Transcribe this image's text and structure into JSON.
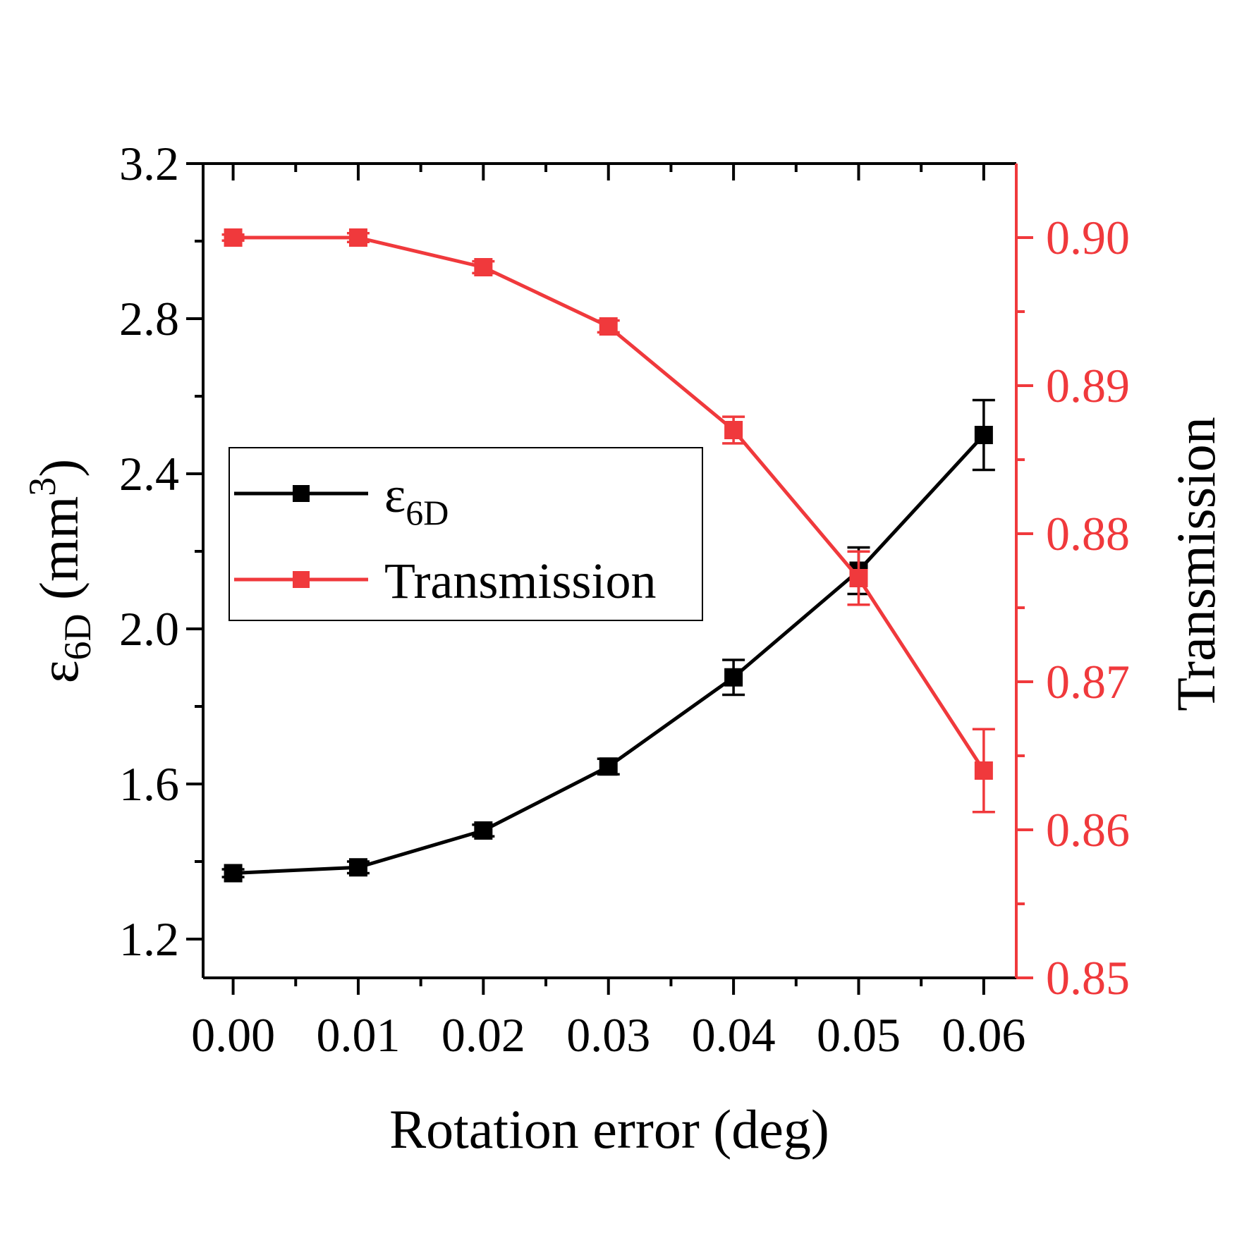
{
  "chart_data": {
    "type": "line",
    "xlabel": "Rotation error (deg)",
    "ylabel_left": {
      "symbol": "ε",
      "sub": "6D",
      "unit_pre": " (mm",
      "unit_sup": "3",
      "unit_post": ")"
    },
    "ylabel_right": "Transmission",
    "x_ticks": [
      "0.00",
      "0.01",
      "0.02",
      "0.03",
      "0.04",
      "0.05",
      "0.06"
    ],
    "y_left_ticks": [
      "1.2",
      "1.6",
      "2.0",
      "2.4",
      "2.8",
      "3.2"
    ],
    "y_right_ticks": [
      "0.85",
      "0.86",
      "0.87",
      "0.88",
      "0.89",
      "0.90"
    ],
    "xlim": [
      -0.0024,
      0.0626
    ],
    "ylim_left": [
      1.1,
      3.2
    ],
    "ylim_right": [
      0.85,
      0.905
    ],
    "x": [
      0.0,
      0.01,
      0.02,
      0.03,
      0.04,
      0.05,
      0.06
    ],
    "series": [
      {
        "name": "ε6D",
        "legend": {
          "symbol": "ε",
          "sub": "6D"
        },
        "axis": "left",
        "color": "#000000",
        "values": [
          1.37,
          1.385,
          1.48,
          1.645,
          1.875,
          2.15,
          2.5
        ],
        "errors": [
          0.01,
          0.015,
          0.015,
          0.02,
          0.045,
          0.06,
          0.09
        ]
      },
      {
        "name": "Transmission",
        "legend": {
          "symbol": "Transmission",
          "sub": ""
        },
        "axis": "right",
        "color": "#f0393c",
        "values": [
          0.9,
          0.9,
          0.898,
          0.894,
          0.887,
          0.877,
          0.864
        ],
        "errors": [
          0.0002,
          0.0003,
          0.0004,
          0.0004,
          0.0009,
          0.0018,
          0.0028
        ]
      }
    ],
    "legend_position": "center-left",
    "grid": false
  }
}
